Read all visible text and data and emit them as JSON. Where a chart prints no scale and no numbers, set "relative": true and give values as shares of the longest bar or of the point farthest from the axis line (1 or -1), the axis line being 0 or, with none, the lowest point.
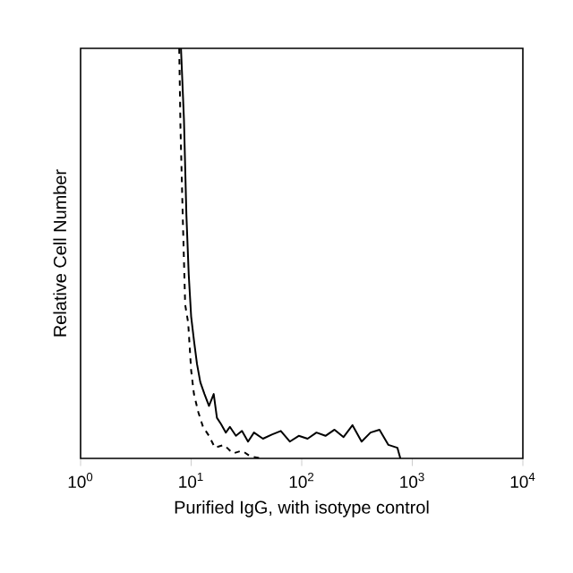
{
  "chart_data": {
    "type": "line",
    "relative": true,
    "log": "x",
    "xlabel": "Purified IgG, with isotype control",
    "ylabel": "Relative Cell Number",
    "xlim": [
      1,
      10000
    ],
    "xticks": [
      {
        "value": 1,
        "label": "10$^{0}$"
      },
      {
        "value": 10,
        "label": "10$^{1}$"
      },
      {
        "value": 100,
        "label": "10$^{2}$"
      },
      {
        "value": 1000,
        "label": "10$^{3}$"
      },
      {
        "value": 10000,
        "label": "10$^{4}$"
      }
    ],
    "series": [
      {
        "color": "#000000",
        "line_style": "solid",
        "x": [
          8.09,
          8.61,
          9.06,
          9.51,
          10,
          10.6,
          11.3,
          12.1,
          13.2,
          14.5,
          16.0,
          17.1,
          18.6,
          20.6,
          22.4,
          25.4,
          28.8,
          32.7,
          37.0,
          44.6,
          53.7,
          64.7,
          78.0,
          94.0,
          113,
          136,
          164,
          198,
          239,
          288,
          348,
          419,
          505,
          608,
          733,
          780
        ],
        "values": [
          1.0,
          0.826,
          0.593,
          0.448,
          0.346,
          0.288,
          0.23,
          0.186,
          0.157,
          0.128,
          0.157,
          0.099,
          0.084,
          0.063,
          0.077,
          0.055,
          0.067,
          0.041,
          0.063,
          0.048,
          0.058,
          0.067,
          0.041,
          0.055,
          0.048,
          0.063,
          0.055,
          0.07,
          0.052,
          0.081,
          0.041,
          0.063,
          0.07,
          0.033,
          0.026,
          0
        ]
      },
      {
        "color": "#000000",
        "line_style": "dashed",
        "x": [
          7.8,
          8.0,
          8.39,
          8.83,
          9.4,
          10,
          10.6,
          11.6,
          12.8,
          14.5,
          16.4,
          19.8,
          23.9,
          28.8,
          34.8,
          44.6
        ],
        "values": [
          1.0,
          0.811,
          0.593,
          0.375,
          0.331,
          0.215,
          0.157,
          0.113,
          0.077,
          0.055,
          0.026,
          0.033,
          0.012,
          0.019,
          0.004,
          0
        ]
      }
    ]
  }
}
